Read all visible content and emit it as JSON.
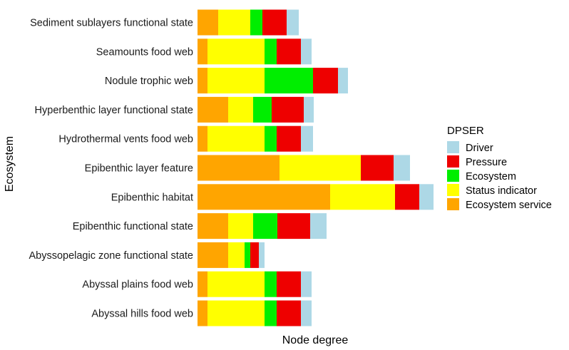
{
  "chart_data": {
    "type": "bar",
    "orientation": "horizontal",
    "stacked": true,
    "xlabel": "Node degree",
    "ylabel": "Ecosystem",
    "grid": false,
    "legend": {
      "title": "DPSER",
      "position": "right",
      "entries": [
        "Driver",
        "Pressure",
        "Ecosystem",
        "Status indicator",
        "Ecosystem service"
      ]
    },
    "categories": [
      "Sediment sublayers functional state",
      "Seamounts food web",
      "Nodule trophic web",
      "Hyperbenthic layer functional state",
      "Hydrothermal vents food web",
      "Epibenthic layer feature",
      "Epibenthic habitat",
      "Epibenthic functional state",
      "Abyssopelagic zone functional state",
      "Abyssal plains food web",
      "Abyssal hills food web"
    ],
    "stack_order": [
      "Ecosystem service",
      "Status indicator",
      "Ecosystem",
      "Pressure",
      "Driver"
    ],
    "series": [
      {
        "name": "Ecosystem service",
        "color": "#FFA500",
        "values": [
          29,
          14,
          14,
          43,
          14,
          115,
          186,
          43,
          43,
          14,
          14
        ]
      },
      {
        "name": "Status indicator",
        "color": "#FFFF00",
        "values": [
          45,
          80,
          80,
          35,
          80,
          114,
          91,
          35,
          23,
          80,
          80
        ]
      },
      {
        "name": "Ecosystem",
        "color": "#00EE00",
        "values": [
          17,
          17,
          68,
          26,
          17,
          0,
          0,
          34,
          8,
          17,
          17
        ]
      },
      {
        "name": "Pressure",
        "color": "#EE0000",
        "values": [
          34,
          34,
          35,
          45,
          34,
          46,
          34,
          46,
          12,
          34,
          34
        ]
      },
      {
        "name": "Driver",
        "color": "#ADD8E6",
        "values": [
          17,
          15,
          14,
          14,
          17,
          23,
          20,
          23,
          8,
          15,
          15
        ]
      }
    ]
  }
}
